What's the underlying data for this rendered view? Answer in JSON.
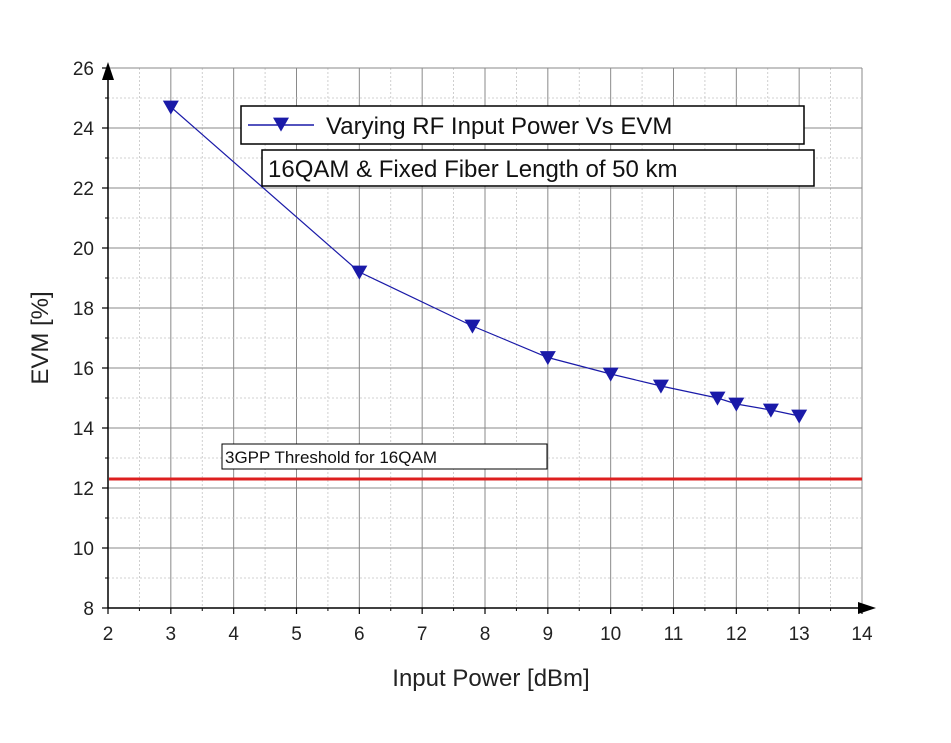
{
  "chart_data": {
    "type": "line",
    "xlabel": "Input Power [dBm]",
    "ylabel": "EVM [%]",
    "xlim": [
      2,
      14
    ],
    "ylim": [
      8,
      26
    ],
    "x_ticks": [
      "2",
      "3",
      "4",
      "5",
      "6",
      "7",
      "8",
      "9",
      "10",
      "11",
      "12",
      "13",
      "14"
    ],
    "y_ticks": [
      "8",
      "10",
      "12",
      "14",
      "16",
      "18",
      "20",
      "22",
      "24",
      "26"
    ],
    "grid": true,
    "series": [
      {
        "name": "Varying RF Input Power Vs EVM",
        "color": "#1a1aa8",
        "marker": "triangle-down",
        "x": [
          3,
          6,
          7.8,
          9,
          10,
          10.8,
          11.7,
          12,
          12.55,
          13
        ],
        "y": [
          24.7,
          19.2,
          17.4,
          16.35,
          15.8,
          15.4,
          15.0,
          14.8,
          14.6,
          14.4
        ]
      }
    ],
    "annotations": {
      "subtitle_box": "16QAM & Fixed Fiber Length of 50 km",
      "threshold": {
        "label": "3GPP Threshold for 16QAM",
        "value": 12.3,
        "color": "#dd1f1f"
      }
    },
    "legend_position": "top-right"
  }
}
